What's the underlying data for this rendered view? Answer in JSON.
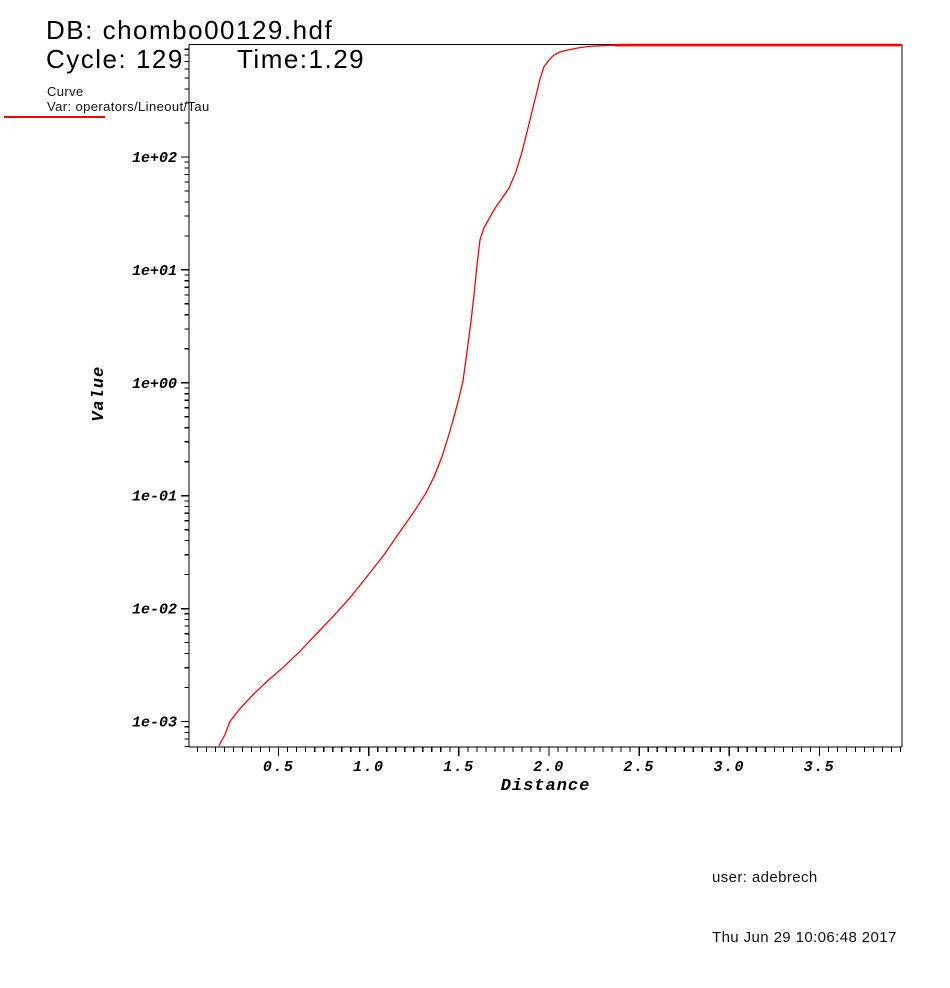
{
  "header": {
    "db_label": "DB: chombo00129.hdf",
    "cycle_label": "Cycle: 129",
    "time_label": "Time:1.29"
  },
  "legend": {
    "plot_type": "Curve",
    "var_label": "Var: operators/Lineout/Tau"
  },
  "footer": {
    "user": "user: adebrech",
    "timestamp": "Thu Jun 29 10:06:48 2017"
  },
  "colors": {
    "curve": "#ff0000",
    "axis": "#000000",
    "background": "#ffffff",
    "text": "#000000"
  },
  "chart_data": {
    "type": "line",
    "title": "",
    "xlabel": "Distance",
    "ylabel": "Value",
    "x_scale": "linear",
    "y_scale": "log",
    "xlim": [
      0.003,
      3.958
    ],
    "ylim": [
      0.000595,
      990
    ],
    "grid": false,
    "legend_position": "top-left",
    "x_major_ticks": [
      0.5,
      1.0,
      1.5,
      2.0,
      2.5,
      3.0,
      3.5
    ],
    "x_tick_labels": [
      "0.5",
      "1.0",
      "1.5",
      "2.0",
      "2.5",
      "3.0",
      "3.5"
    ],
    "x_minor_step": 0.05,
    "y_major_ticks": [
      0.001,
      0.01,
      0.1,
      1,
      10,
      100
    ],
    "y_tick_labels": [
      "1e-03",
      "1e-02",
      "1e-01",
      "1e+00",
      "1e+01",
      "1e+02"
    ],
    "y_minor_decades": [
      -4,
      -3,
      -2,
      -1,
      0,
      1,
      2
    ],
    "plateau_from_x": 2.35,
    "series": [
      {
        "name": "operators/Lineout/Tau",
        "color": "#ff0000",
        "points": [
          [
            0.169,
            0.00061
          ],
          [
            0.203,
            0.00077
          ],
          [
            0.23,
            0.001
          ],
          [
            0.286,
            0.0013
          ],
          [
            0.358,
            0.00173
          ],
          [
            0.441,
            0.00231
          ],
          [
            0.524,
            0.003
          ],
          [
            0.619,
            0.0042
          ],
          [
            0.707,
            0.0059
          ],
          [
            0.802,
            0.0085
          ],
          [
            0.896,
            0.0125
          ],
          [
            0.99,
            0.0192
          ],
          [
            1.085,
            0.03
          ],
          [
            1.173,
            0.048
          ],
          [
            1.251,
            0.072
          ],
          [
            1.318,
            0.106
          ],
          [
            1.362,
            0.147
          ],
          [
            1.406,
            0.22
          ],
          [
            1.445,
            0.35
          ],
          [
            1.473,
            0.5
          ],
          [
            1.501,
            0.74
          ],
          [
            1.523,
            1.04
          ],
          [
            1.545,
            1.88
          ],
          [
            1.567,
            3.5
          ],
          [
            1.584,
            6.0
          ],
          [
            1.6,
            10.8
          ],
          [
            1.617,
            18.4
          ],
          [
            1.639,
            23.5
          ],
          [
            1.667,
            28.3
          ],
          [
            1.7,
            35.0
          ],
          [
            1.739,
            43.0
          ],
          [
            1.778,
            53.0
          ],
          [
            1.817,
            74.0
          ],
          [
            1.85,
            111.0
          ],
          [
            1.878,
            166.0
          ],
          [
            1.905,
            250.0
          ],
          [
            1.928,
            350.0
          ],
          [
            1.95,
            490.0
          ],
          [
            1.972,
            630.0
          ],
          [
            2.0,
            720.0
          ],
          [
            2.027,
            800.0
          ],
          [
            2.061,
            850.0
          ],
          [
            2.105,
            885.0
          ],
          [
            2.155,
            920.0
          ],
          [
            2.216,
            950.0
          ],
          [
            2.283,
            965.0
          ],
          [
            2.366,
            976.0
          ],
          [
            2.449,
            978.0
          ],
          [
            3.953,
            978.0
          ]
        ]
      }
    ]
  }
}
